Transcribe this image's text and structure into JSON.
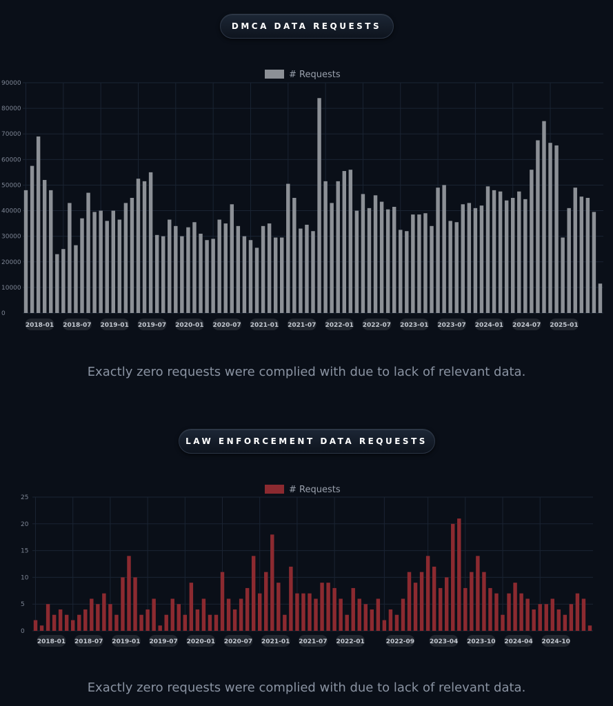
{
  "sections": [
    {
      "title": "DMCA DATA REQUESTS",
      "caption": "Exactly zero requests were complied with due to lack of relevant data."
    },
    {
      "title": "LAW ENFORCEMENT DATA REQUESTS",
      "caption": "Exactly zero requests were complied with due to lack of relevant data."
    }
  ],
  "colors": {
    "background": "#0a0f18",
    "dmca_bar": "#8c9096",
    "le_bar": "#8c2a30",
    "grid": "#1a2433"
  },
  "chart_data": [
    {
      "type": "bar",
      "legend": "# Requests",
      "legend_placement": "top-center",
      "grid": true,
      "ylim": [
        0,
        90000
      ],
      "yticks": [
        0,
        10000,
        20000,
        30000,
        40000,
        50000,
        60000,
        70000,
        80000,
        90000
      ],
      "start": "2018-01",
      "xtick_labels": [
        "2018-01",
        "2018-07",
        "2019-01",
        "2019-07",
        "2020-01",
        "2020-07",
        "2021-01",
        "2021-07",
        "2022-01",
        "2022-07",
        "2023-01",
        "2023-07",
        "2024-01",
        "2024-07",
        "2025-01"
      ],
      "values": [
        48000,
        57500,
        69000,
        52000,
        48000,
        23000,
        25000,
        43000,
        26500,
        37000,
        47000,
        39500,
        40000,
        36000,
        40000,
        36500,
        43000,
        45000,
        52500,
        51500,
        55000,
        30500,
        30000,
        36500,
        34000,
        30000,
        33500,
        35500,
        31000,
        28500,
        29000,
        36500,
        35000,
        42500,
        34000,
        30000,
        28500,
        25500,
        34000,
        35000,
        29500,
        29500,
        50500,
        45000,
        33000,
        34500,
        32000,
        84000,
        51500,
        43000,
        51500,
        55500,
        56000,
        40000,
        46500,
        41000,
        46000,
        43500,
        40500,
        41500,
        32500,
        32000,
        38500,
        38500,
        39000,
        34000,
        49000,
        50000,
        36000,
        35500,
        42500,
        43000,
        41000,
        42000,
        49500,
        48000,
        47500,
        44000,
        45000,
        47500,
        44500,
        56000,
        67500,
        75000,
        66500,
        65500,
        29500,
        41000,
        49000,
        45500,
        45000,
        39500,
        11500
      ],
      "color": "#8c9096"
    },
    {
      "type": "bar",
      "legend": "# Requests",
      "legend_placement": "top-center",
      "grid": true,
      "ylim": [
        0,
        25
      ],
      "yticks": [
        0,
        5,
        10,
        15,
        20,
        25
      ],
      "start": "2018-01",
      "xtick_labels": [
        "2018-01",
        "2018-07",
        "2019-01",
        "2019-07",
        "2020-01",
        "2020-07",
        "2021-01",
        "2021-07",
        "2022-01",
        "2022-09",
        "2023-04",
        "2023-10",
        "2024-04",
        "2024-10"
      ],
      "values": [
        2,
        1,
        5,
        3,
        4,
        3,
        2,
        3,
        4,
        6,
        5,
        7,
        5,
        3,
        10,
        14,
        10,
        3,
        4,
        6,
        1,
        3,
        6,
        5,
        3,
        9,
        4,
        6,
        3,
        3,
        11,
        6,
        4,
        6,
        8,
        14,
        7,
        11,
        18,
        9,
        3,
        12,
        7,
        7,
        7,
        6,
        9,
        9,
        8,
        6,
        3,
        8,
        6,
        5,
        4,
        6,
        2,
        4,
        3,
        6,
        11,
        9,
        11,
        14,
        12,
        8,
        10,
        20,
        21,
        8,
        11,
        14,
        11,
        8,
        7,
        3,
        7,
        9,
        7,
        6,
        4,
        5,
        5,
        6,
        4,
        3,
        5,
        7,
        6,
        1
      ],
      "color": "#8c2a30"
    }
  ]
}
